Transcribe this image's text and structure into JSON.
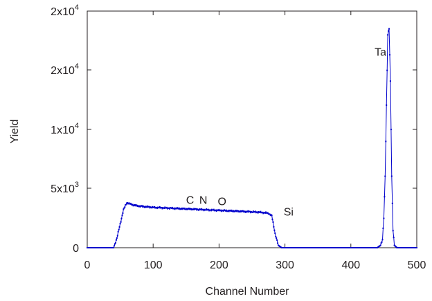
{
  "chart_data": {
    "type": "scatter",
    "title": "",
    "xlabel": "Channel Number",
    "ylabel": "Yield",
    "xlim": [
      0,
      500
    ],
    "ylim": [
      0,
      25000
    ],
    "x_ticks": [
      {
        "value": 0,
        "label": "0"
      },
      {
        "value": 100,
        "label": "100"
      },
      {
        "value": 200,
        "label": "200"
      },
      {
        "value": 300,
        "label": "300"
      },
      {
        "value": 400,
        "label": "400"
      },
      {
        "value": 500,
        "label": "500"
      }
    ],
    "y_ticks": [
      {
        "value": 0,
        "label": "0"
      },
      {
        "value": 5000,
        "base": "5x10",
        "exp": "3"
      },
      {
        "value": 10000,
        "base": "1x10",
        "exp": "4"
      },
      {
        "value": 15000,
        "base": "2x10",
        "exp": "4"
      },
      {
        "value": 20000,
        "base": "2x10",
        "exp": "4"
      }
    ],
    "series": [
      {
        "color": "#0000cc",
        "style": "dotted line with markers",
        "x": [
          0,
          40,
          45,
          50,
          55,
          60,
          65,
          70,
          80,
          100,
          120,
          140,
          160,
          180,
          200,
          220,
          240,
          260,
          270,
          275,
          280,
          285,
          290,
          295,
          300,
          320,
          350,
          380,
          400,
          420,
          440,
          445,
          448,
          450,
          452,
          454,
          456,
          458,
          460,
          462,
          464,
          466,
          470,
          480,
          500
        ],
        "y": [
          0,
          0,
          800,
          2000,
          3200,
          3800,
          3700,
          3600,
          3500,
          3400,
          3350,
          3300,
          3250,
          3200,
          3150,
          3100,
          3050,
          3000,
          2950,
          2900,
          2700,
          1200,
          200,
          0,
          0,
          0,
          0,
          0,
          0,
          0,
          0,
          200,
          700,
          2500,
          6000,
          12000,
          18000,
          18500,
          14000,
          6000,
          1500,
          200,
          0,
          0,
          0
        ]
      }
    ],
    "annotations": [
      {
        "text": "C",
        "x": 150,
        "y": 3700
      },
      {
        "text": "N",
        "x": 170,
        "y": 3700
      },
      {
        "text": "O",
        "x": 198,
        "y": 3600
      },
      {
        "text": "Si",
        "x": 298,
        "y": 2700
      },
      {
        "text": "Ta",
        "x": 436,
        "y": 16200
      }
    ],
    "grid": false,
    "legend": "none"
  }
}
